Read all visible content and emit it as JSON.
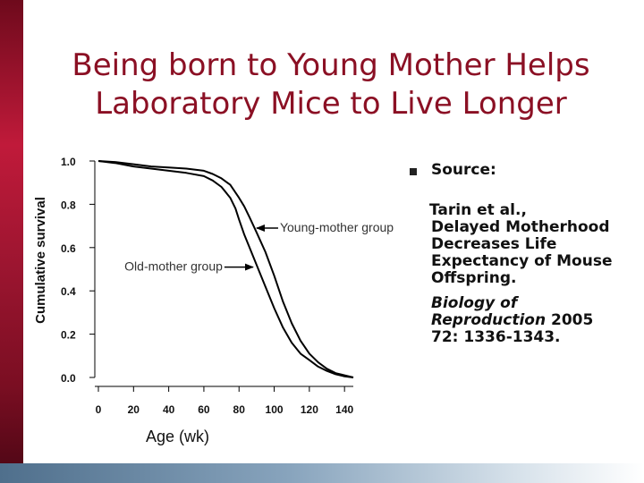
{
  "slide": {
    "title_line1": "Being born to Young Mother Helps",
    "title_line2": "Laboratory Mice to Live Longer",
    "accent_color": "#8b1024"
  },
  "source": {
    "heading": "Source:",
    "authors": "Tarin et al.,",
    "article_line1": "Delayed Motherhood",
    "article_line2": "Decreases Life",
    "article_line3": "Expectancy of Mouse",
    "article_line4": "Offspring.",
    "journal_line1": "Biology of",
    "journal_line2": "Reproduction",
    "year": "2005",
    "volume_pages": "72: 1336-1343."
  },
  "chart_data": {
    "type": "line",
    "title": "",
    "xlabel": "Age (wk)",
    "ylabel": "Cumulative survival",
    "xlim": [
      0,
      145
    ],
    "ylim": [
      0,
      1.0
    ],
    "x_ticks": [
      "0",
      "20",
      "40",
      "60",
      "80",
      "100",
      "120",
      "140"
    ],
    "y_ticks": [
      "1.0",
      "0.8",
      "0.6",
      "0.4",
      "0.2",
      "0.0"
    ],
    "series": [
      {
        "name": "Young-mother group",
        "color": "#000000",
        "x": [
          0,
          10,
          20,
          30,
          40,
          50,
          60,
          65,
          70,
          75,
          80,
          83,
          86,
          90,
          95,
          100,
          105,
          110,
          115,
          120,
          125,
          130,
          135,
          140,
          145
        ],
        "y": [
          1.0,
          0.995,
          0.985,
          0.975,
          0.97,
          0.965,
          0.955,
          0.94,
          0.92,
          0.89,
          0.83,
          0.79,
          0.74,
          0.67,
          0.58,
          0.47,
          0.35,
          0.25,
          0.17,
          0.11,
          0.07,
          0.04,
          0.02,
          0.01,
          0.0
        ]
      },
      {
        "name": "Old-mother group",
        "color": "#000000",
        "x": [
          0,
          10,
          20,
          30,
          40,
          50,
          60,
          65,
          70,
          75,
          78,
          80,
          83,
          86,
          90,
          95,
          100,
          105,
          110,
          115,
          120,
          125,
          130,
          135,
          140,
          145
        ],
        "y": [
          1.0,
          0.99,
          0.975,
          0.965,
          0.955,
          0.945,
          0.93,
          0.91,
          0.88,
          0.83,
          0.78,
          0.73,
          0.66,
          0.6,
          0.52,
          0.42,
          0.32,
          0.23,
          0.16,
          0.11,
          0.08,
          0.05,
          0.03,
          0.015,
          0.005,
          0.0
        ]
      }
    ],
    "annotations": [
      {
        "text": "Young-mother group",
        "points_to_series": "Young-mother group"
      },
      {
        "text": "Old-mother group",
        "points_to_series": "Old-mother group"
      }
    ]
  }
}
